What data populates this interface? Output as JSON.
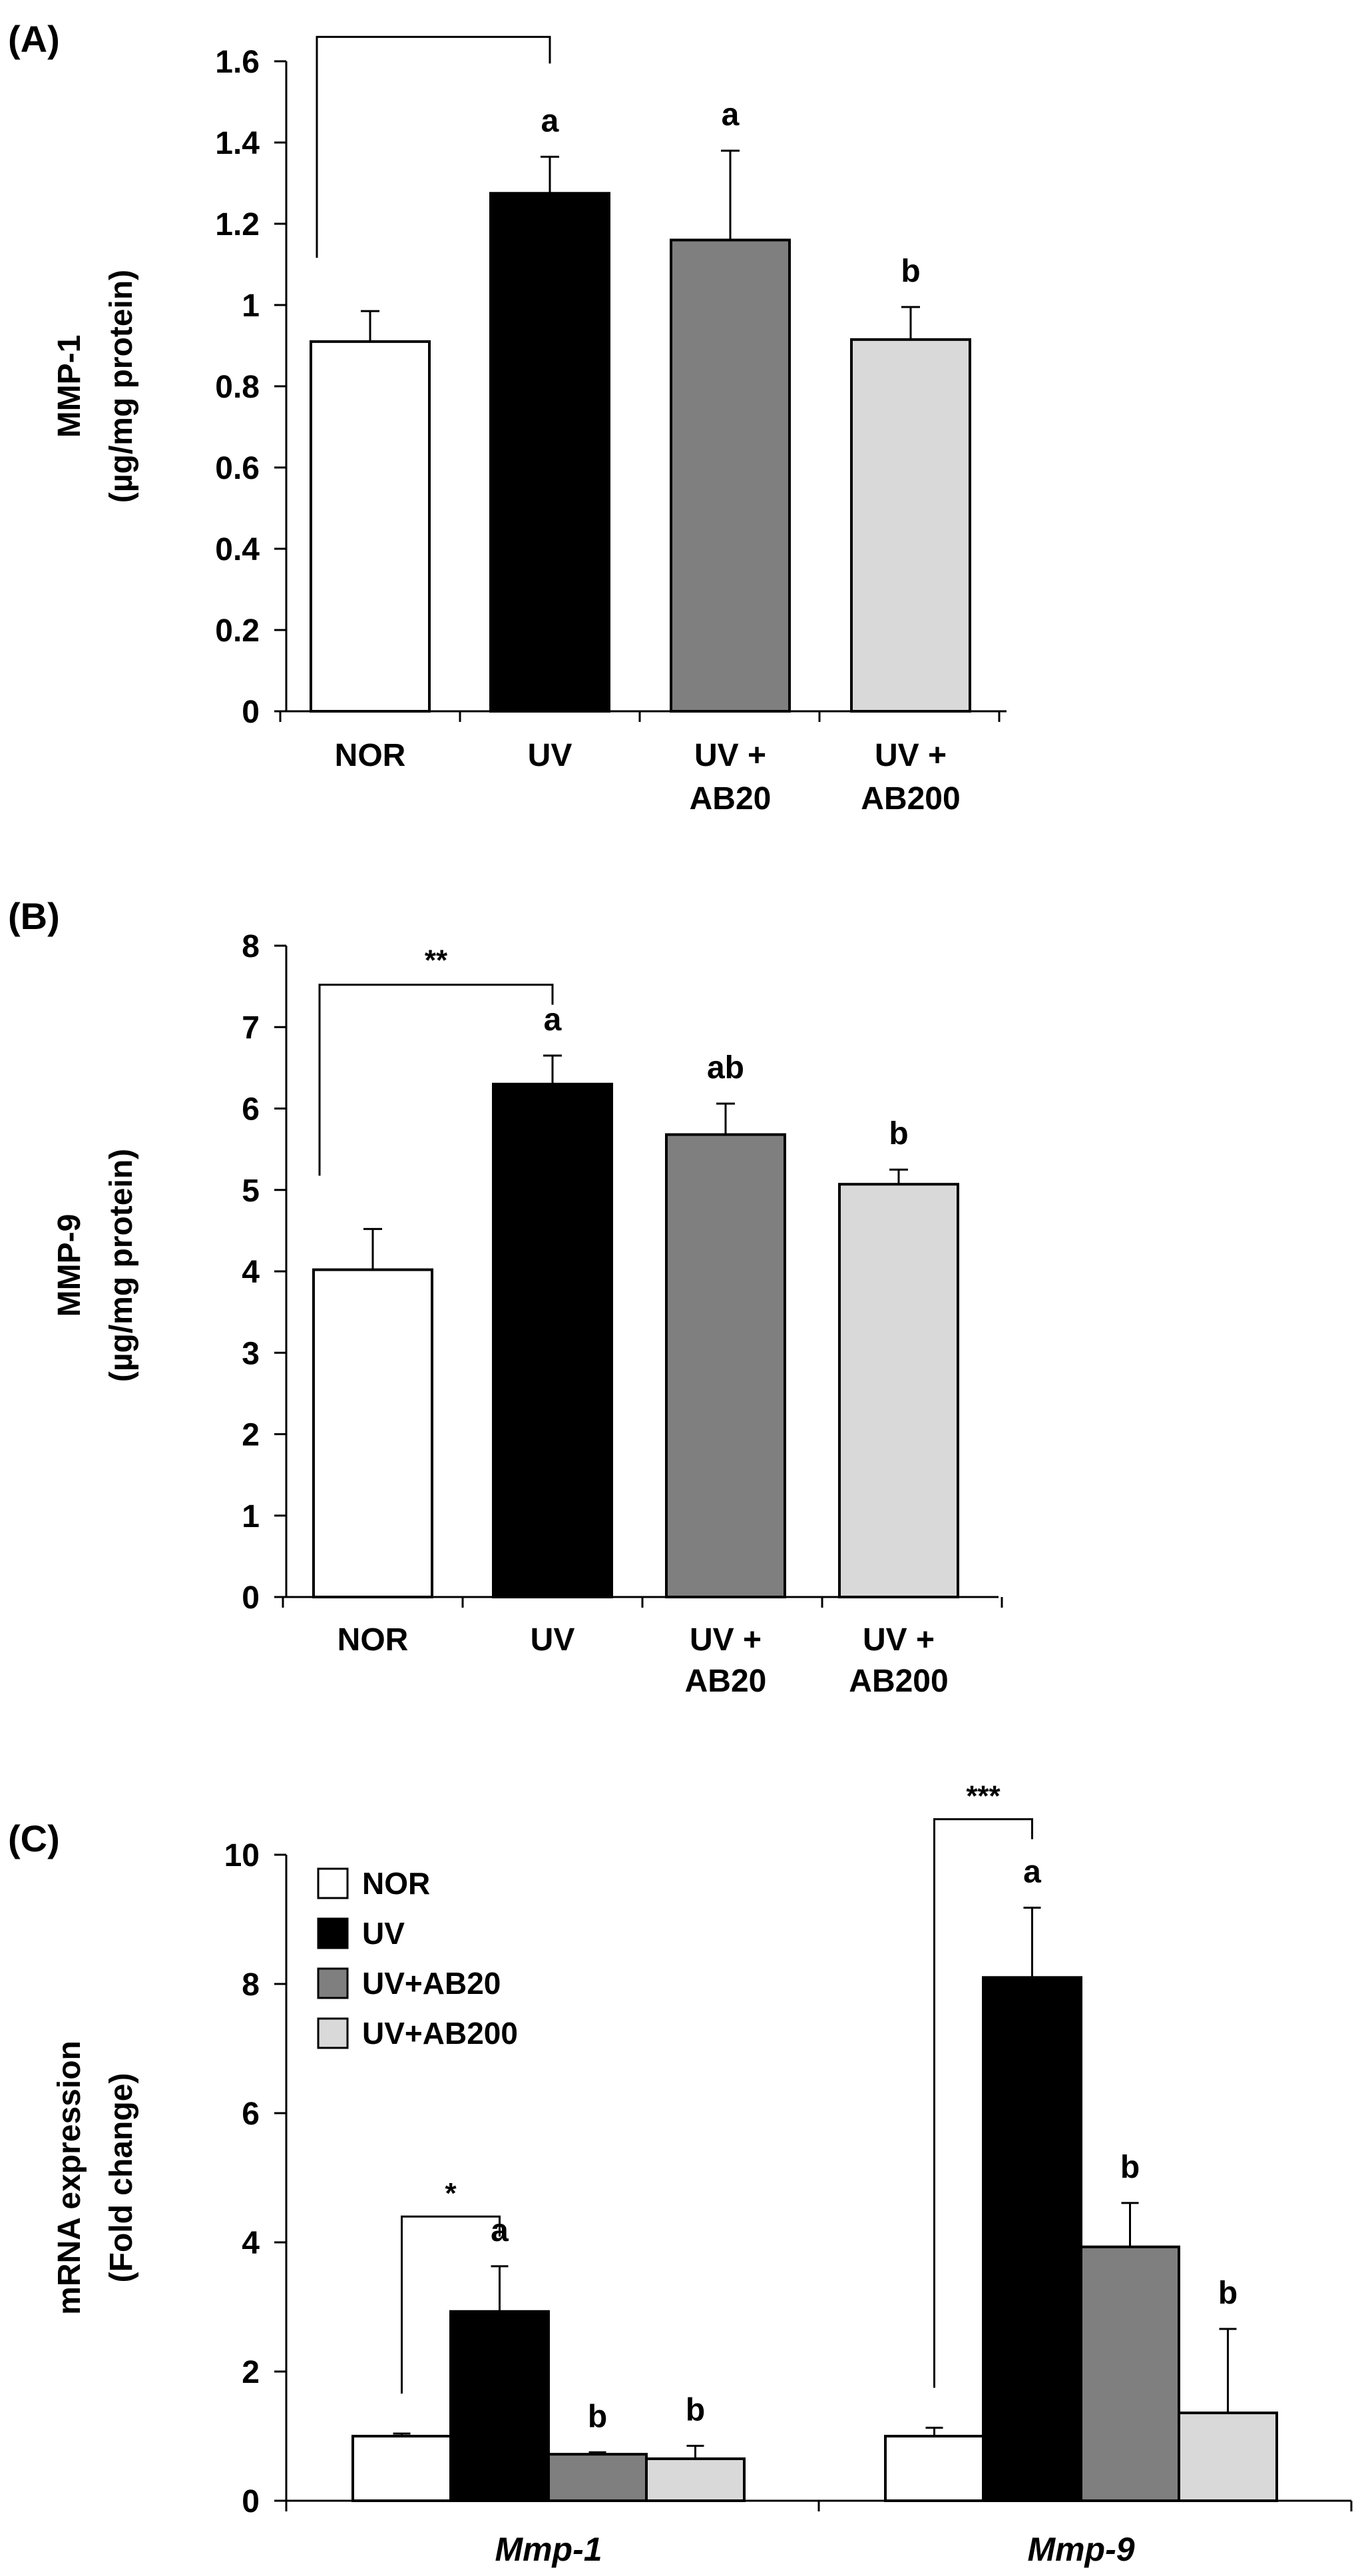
{
  "chart_data": [
    {
      "type": "bar",
      "panel_label": "(A)",
      "ylabel": "MMP-1",
      "ylabel_unit": "(µg/mg protein)",
      "ylim": [
        0,
        1.6
      ],
      "yticks": [
        0,
        0.2,
        0.4,
        0.6,
        0.8,
        1,
        1.2,
        1.4,
        1.6
      ],
      "ytick_labels": [
        "0",
        "0.2",
        "0.4",
        "0.6",
        "0.8",
        "1",
        "1.2",
        "1.4",
        "1.6"
      ],
      "categories": [
        {
          "line1": "NOR",
          "line2": ""
        },
        {
          "line1": "UV",
          "line2": ""
        },
        {
          "line1": "UV +",
          "line2": "AB20"
        },
        {
          "line1": "UV +",
          "line2": "AB200"
        }
      ],
      "values": [
        0.91,
        1.275,
        1.16,
        0.915
      ],
      "errors": [
        0.075,
        0.09,
        0.22,
        0.08
      ],
      "colors": [
        "#ffffff",
        "#000000",
        "#7f7f7f",
        "#d9d9d9"
      ],
      "letters": [
        "",
        "a",
        "a",
        "b"
      ],
      "bracket": {
        "from": 0,
        "to": 1,
        "top": 1.66,
        "label": ""
      }
    },
    {
      "type": "bar",
      "panel_label": "(B)",
      "ylabel": "MMP-9",
      "ylabel_unit": "(µg/mg protein)",
      "ylim": [
        0,
        8
      ],
      "yticks": [
        0,
        1,
        2,
        3,
        4,
        5,
        6,
        7,
        8
      ],
      "ytick_labels": [
        "0",
        "1",
        "2",
        "3",
        "4",
        "5",
        "6",
        "7",
        "8"
      ],
      "categories": [
        {
          "line1": "NOR",
          "line2": ""
        },
        {
          "line1": "UV",
          "line2": ""
        },
        {
          "line1": "UV +",
          "line2": "AB20"
        },
        {
          "line1": "UV +",
          "line2": "AB200"
        }
      ],
      "values": [
        4.02,
        6.3,
        5.68,
        5.07
      ],
      "errors": [
        0.5,
        0.35,
        0.38,
        0.18
      ],
      "colors": [
        "#ffffff",
        "#000000",
        "#7f7f7f",
        "#d9d9d9"
      ],
      "letters": [
        "",
        "a",
        "ab",
        "b"
      ],
      "bracket": {
        "from": 0,
        "to": 1,
        "top": 7.52,
        "label": "**"
      }
    },
    {
      "type": "bar",
      "panel_label": "(C)",
      "ylabel": "mRNA expression",
      "ylabel_unit": "(Fold change)",
      "ylim": [
        0,
        10
      ],
      "yticks": [
        0,
        2,
        4,
        6,
        8,
        10
      ],
      "ytick_labels": [
        "0",
        "2",
        "4",
        "6",
        "8",
        "10"
      ],
      "categories": [
        "Mmp-1",
        "Mmp-9"
      ],
      "series": [
        {
          "name": "NOR",
          "color": "#ffffff",
          "values": [
            1.0,
            1.0
          ],
          "errors": [
            0.04,
            0.13
          ],
          "letters": [
            "",
            ""
          ]
        },
        {
          "name": "UV",
          "color": "#000000",
          "values": [
            2.93,
            8.1
          ],
          "errors": [
            0.7,
            1.08
          ],
          "letters": [
            "a",
            "a"
          ]
        },
        {
          "name": "UV+AB20",
          "color": "#7f7f7f",
          "values": [
            0.72,
            3.93
          ],
          "errors": [
            0.03,
            0.68
          ],
          "letters": [
            "b",
            "b"
          ]
        },
        {
          "name": "UV+AB200",
          "color": "#d9d9d9",
          "values": [
            0.65,
            1.36
          ],
          "errors": [
            0.2,
            1.3
          ],
          "letters": [
            "b",
            "b"
          ]
        }
      ],
      "brackets": [
        {
          "group": 0,
          "top": 4.4,
          "label": "*"
        },
        {
          "group": 1,
          "top": 10.55,
          "label": "***"
        }
      ]
    }
  ]
}
